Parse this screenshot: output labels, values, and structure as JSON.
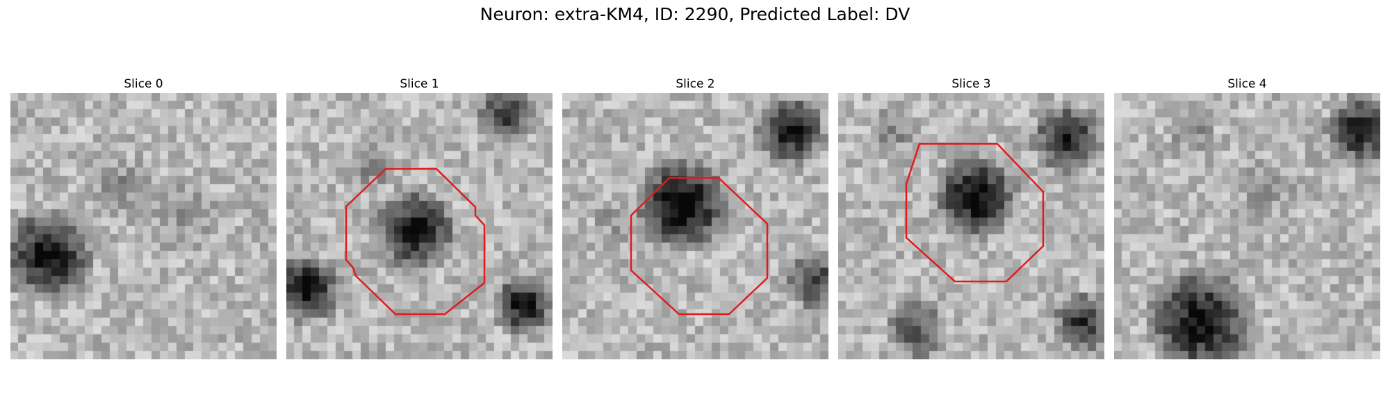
{
  "figure": {
    "title": "Neuron: extra-KM4, ID: 2290, Predicted Label: DV"
  },
  "colors": {
    "outline": "#e31a1c",
    "background": "#ffffff"
  },
  "slices": [
    {
      "title": "Slice 0",
      "has_outline": false
    },
    {
      "title": "Slice 1",
      "has_outline": true
    },
    {
      "title": "Slice 2",
      "has_outline": true
    },
    {
      "title": "Slice 3",
      "has_outline": true
    },
    {
      "title": "Slice 4",
      "has_outline": false
    }
  ]
}
